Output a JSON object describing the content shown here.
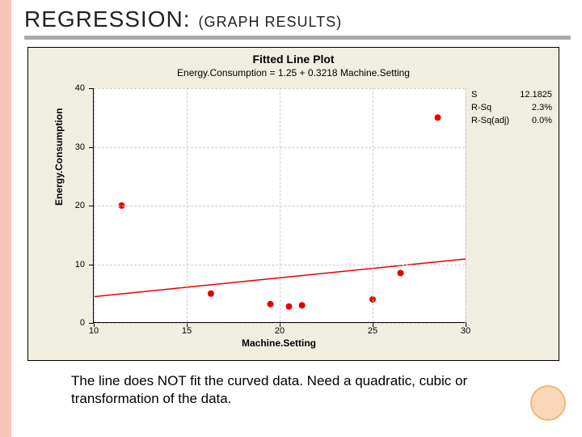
{
  "title_main": "REGRESSION:",
  "title_sub": "(GRAPH RESULTS)",
  "chart": {
    "type": "scatter-with-line",
    "title": "Fitted Line Plot",
    "equation": "Energy.Consumption =  1.25 + 0.3218 Machine.Setting",
    "xlabel": "Machine.Setting",
    "ylabel": "Energy.Consumption",
    "xlim": [
      10,
      30
    ],
    "ylim": [
      0,
      40
    ],
    "xticks": [
      10,
      15,
      20,
      25,
      30
    ],
    "yticks": [
      0,
      10,
      20,
      30,
      40
    ],
    "background_color": "#f0eedf",
    "plot_bg": "#ffffff",
    "grid_color": "#cccccc",
    "point_color": "#e60000",
    "line_color": "#e60000",
    "point_radius": 4,
    "line_intercept": 1.25,
    "line_slope": 0.3218,
    "points": [
      {
        "x": 11.5,
        "y": 20
      },
      {
        "x": 16.3,
        "y": 5
      },
      {
        "x": 19.5,
        "y": 3.2
      },
      {
        "x": 20.5,
        "y": 2.8
      },
      {
        "x": 21.2,
        "y": 3
      },
      {
        "x": 25,
        "y": 4
      },
      {
        "x": 26.5,
        "y": 8.5
      },
      {
        "x": 28.5,
        "y": 35
      }
    ],
    "stats": [
      {
        "label": "S",
        "value": "12.1825"
      },
      {
        "label": "R-Sq",
        "value": "2.3%"
      },
      {
        "label": "R-Sq(adj)",
        "value": "0.0%"
      }
    ]
  },
  "caption": "The line does NOT fit the curved data.  Need a quadratic, cubic or transformation of the data."
}
